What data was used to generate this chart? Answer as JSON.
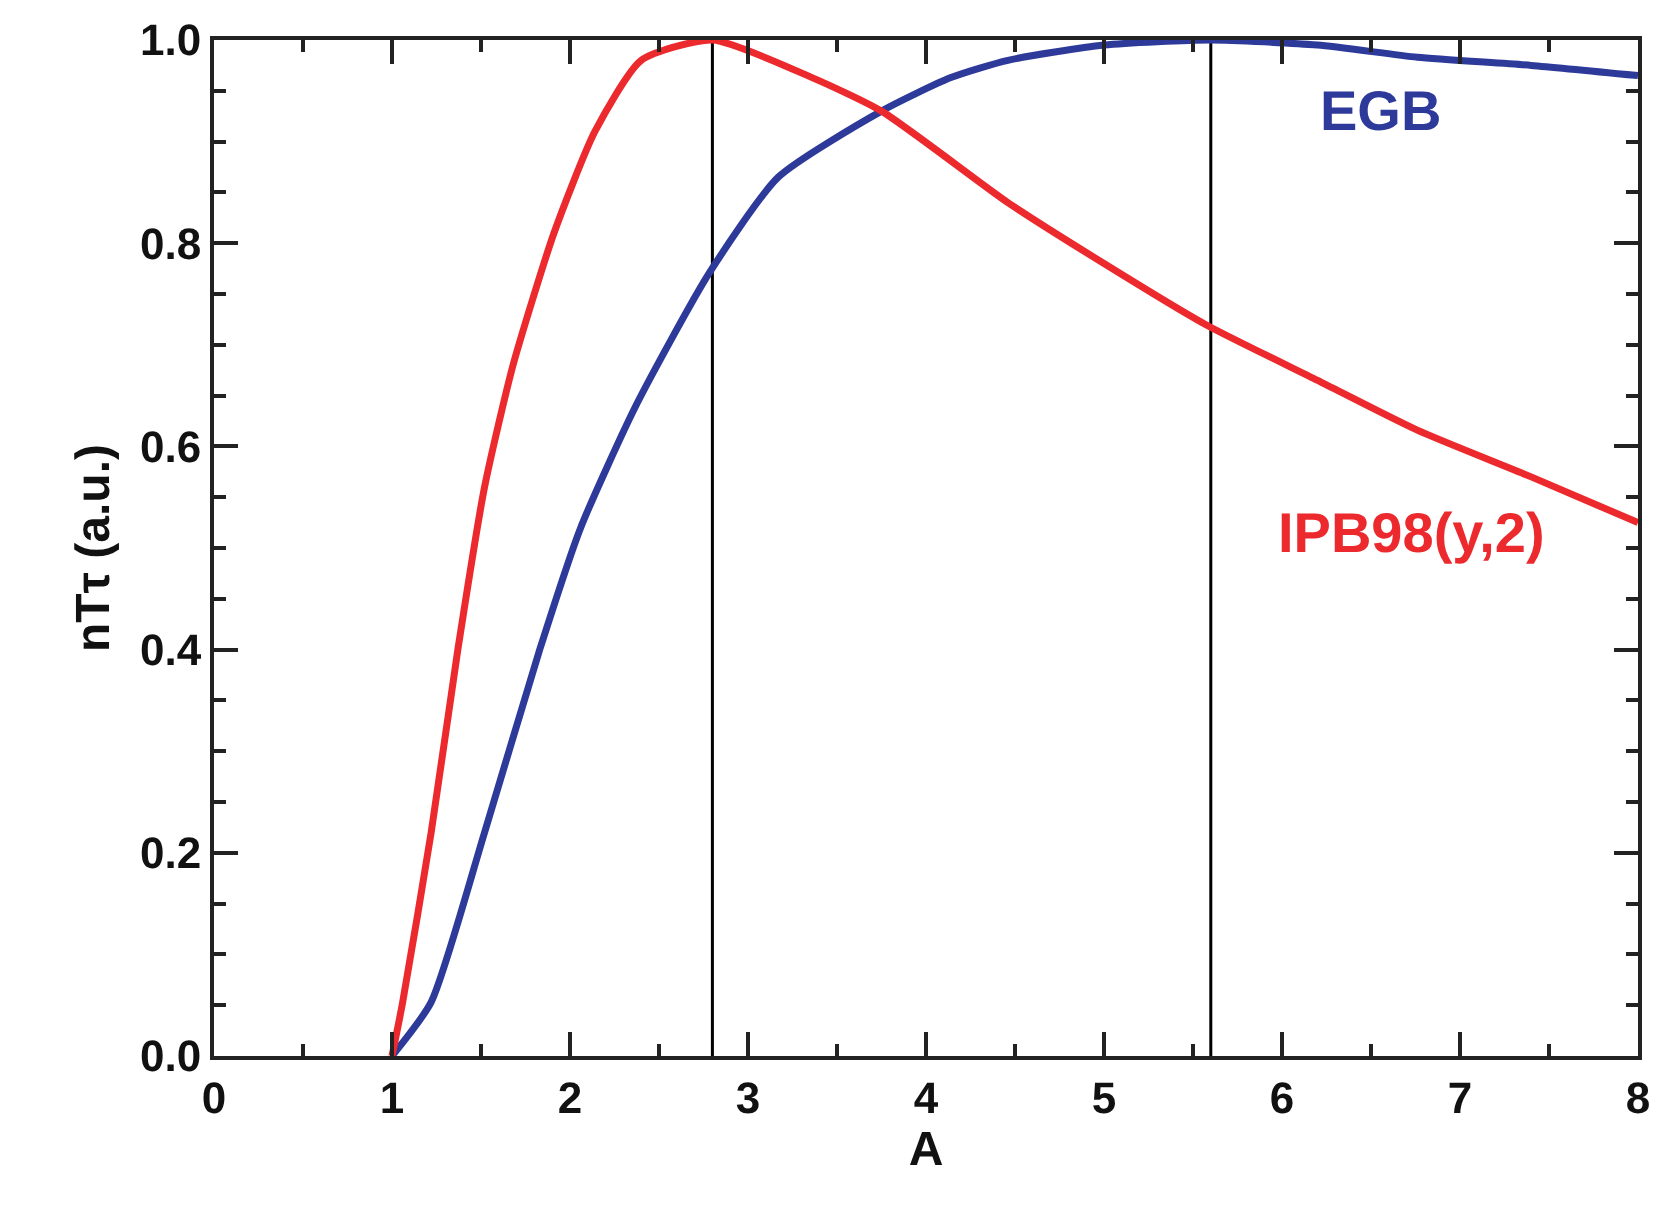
{
  "chart_data": {
    "type": "line",
    "xlabel": "A",
    "ylabel": "nTτ (a.u.)",
    "xlim": [
      0,
      8
    ],
    "ylim": [
      0,
      1.0
    ],
    "xticks": [
      0,
      1,
      2,
      3,
      4,
      5,
      6,
      7,
      8
    ],
    "yticks": [
      {
        "value": 0,
        "label": "0.0"
      },
      {
        "value": 0.2,
        "label": "0.2"
      },
      {
        "value": 0.4,
        "label": "0.4"
      },
      {
        "value": 0.6,
        "label": "0.6"
      },
      {
        "value": 0.8,
        "label": "0.8"
      },
      {
        "value": 1.0,
        "label": "1.0"
      }
    ],
    "grid": false,
    "legend": false,
    "marker": "none",
    "line_style": "solid",
    "ref_lines": [
      {
        "axis": "x",
        "value": 2.8,
        "color": "#000000"
      },
      {
        "axis": "x",
        "value": 5.6,
        "color": "#000000"
      }
    ],
    "series": [
      {
        "name": "EGB",
        "color": "#2e3a9a",
        "x": [
          1.0,
          1.22,
          1.52,
          1.83,
          2.06,
          2.37,
          2.78,
          3.17,
          3.75,
          4.14,
          4.46,
          5.0,
          5.6,
          6.2,
          6.76,
          7.4,
          8.0
        ],
        "values": [
          0,
          0.053,
          0.22,
          0.4,
          0.52,
          0.64,
          0.77,
          0.865,
          0.93,
          0.963,
          0.98,
          0.995,
          1.0,
          0.995,
          0.983,
          0.975,
          0.965
        ]
      },
      {
        "name": "IPB98(y,2)",
        "color": "#ec2a2e",
        "x": [
          1.0,
          1.06,
          1.22,
          1.37,
          1.52,
          1.68,
          1.91,
          2.14,
          2.4,
          2.8,
          3.36,
          3.75,
          4.46,
          5.0,
          5.57,
          6.2,
          6.76,
          7.4,
          8.0
        ],
        "values": [
          0,
          0.053,
          0.22,
          0.4,
          0.56,
          0.68,
          0.81,
          0.91,
          0.98,
          1.0,
          0.963,
          0.93,
          0.84,
          0.78,
          0.72,
          0.665,
          0.616,
          0.57,
          0.525
        ]
      }
    ]
  }
}
